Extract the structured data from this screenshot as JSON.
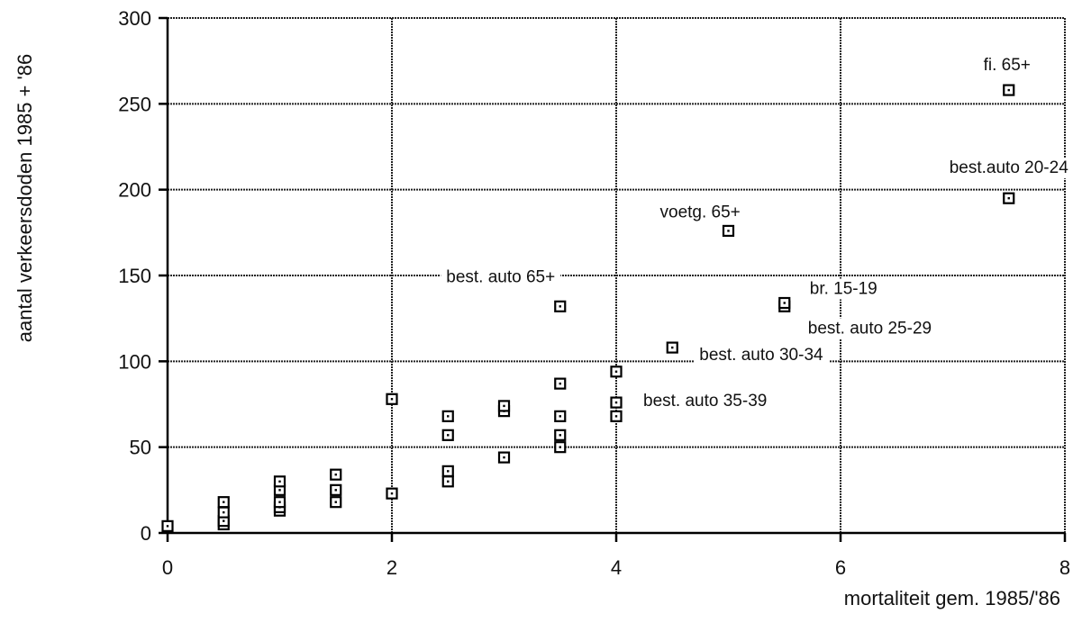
{
  "chart_data": {
    "type": "scatter",
    "xlabel": "mortaliteit gem. 1985/'86",
    "ylabel": "aantal verkeersdoden 1985 + '86",
    "xlim": [
      0,
      8
    ],
    "ylim": [
      0,
      300
    ],
    "xticks": [
      0,
      2,
      4,
      6,
      8
    ],
    "yticks": [
      0,
      50,
      100,
      150,
      200,
      250,
      300
    ],
    "grid": "horizontal and vertical dotted lines at major ticks",
    "marker": "hollow square",
    "points": [
      {
        "x": 0,
        "y": 4
      },
      {
        "x": 0.5,
        "y": 5
      },
      {
        "x": 0.5,
        "y": 7
      },
      {
        "x": 0.5,
        "y": 12
      },
      {
        "x": 0.5,
        "y": 18
      },
      {
        "x": 1,
        "y": 13
      },
      {
        "x": 1,
        "y": 15
      },
      {
        "x": 1,
        "y": 18
      },
      {
        "x": 1,
        "y": 25
      },
      {
        "x": 1,
        "y": 30
      },
      {
        "x": 1.5,
        "y": 18
      },
      {
        "x": 1.5,
        "y": 25
      },
      {
        "x": 1.5,
        "y": 34
      },
      {
        "x": 2,
        "y": 23
      },
      {
        "x": 2,
        "y": 78
      },
      {
        "x": 2.5,
        "y": 30
      },
      {
        "x": 2.5,
        "y": 36
      },
      {
        "x": 2.5,
        "y": 57
      },
      {
        "x": 2.5,
        "y": 68
      },
      {
        "x": 3,
        "y": 44
      },
      {
        "x": 3,
        "y": 71
      },
      {
        "x": 3,
        "y": 74
      },
      {
        "x": 3.5,
        "y": 50
      },
      {
        "x": 3.5,
        "y": 57
      },
      {
        "x": 3.5,
        "y": 68
      },
      {
        "x": 3.5,
        "y": 87
      },
      {
        "x": 3.5,
        "y": 132,
        "label": "best. auto 65+"
      },
      {
        "x": 4,
        "y": 68
      },
      {
        "x": 4,
        "y": 76
      },
      {
        "x": 4,
        "y": 94,
        "label": "best. auto 35-39"
      },
      {
        "x": 4.5,
        "y": 108,
        "label": "best. auto 30-34"
      },
      {
        "x": 5,
        "y": 176,
        "label": "voetg. 65+"
      },
      {
        "x": 5.5,
        "y": 132,
        "label": "best. auto 25-29"
      },
      {
        "x": 5.5,
        "y": 134,
        "label": "br. 15-19"
      },
      {
        "x": 7.5,
        "y": 195,
        "label": "best.auto 20-24"
      },
      {
        "x": 7.5,
        "y": 258,
        "label": "fi. 65+"
      }
    ]
  }
}
